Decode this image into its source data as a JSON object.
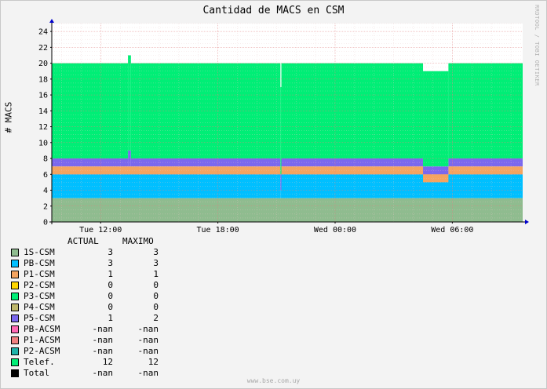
{
  "chart_data": {
    "type": "area",
    "title": "Cantidad de MACS en CSM",
    "ylabel": "# MACS",
    "ylim": [
      0,
      25
    ],
    "y_ticks": [
      0,
      2,
      4,
      6,
      8,
      10,
      12,
      14,
      16,
      18,
      20,
      22,
      24
    ],
    "x_ticks": [
      "Tue 12:00",
      "Tue 18:00",
      "Wed 00:00",
      "Wed 06:00"
    ],
    "x_tick_hours": [
      0,
      6,
      12,
      18
    ],
    "x_range_hours": [
      -2.5,
      21.6
    ],
    "stack": [
      {
        "name": "1S-CSM",
        "color": "#8fbc8f",
        "segments": [
          [
            -2.5,
            21.6,
            3
          ]
        ]
      },
      {
        "name": "PB-CSM",
        "color": "#00bfff",
        "segments": [
          [
            -2.5,
            9.2,
            3
          ],
          [
            9.2,
            9.25,
            1
          ],
          [
            9.25,
            21.6,
            3
          ]
        ]
      },
      {
        "name": "P1-CSM",
        "color": "#f4a460",
        "segments": [
          [
            -2.5,
            9.2,
            1
          ],
          [
            9.2,
            9.25,
            0
          ],
          [
            9.25,
            16.5,
            1
          ],
          [
            16.5,
            17.8,
            1
          ],
          [
            17.8,
            21.6,
            1
          ]
        ]
      },
      {
        "name": "P5-CSM",
        "color": "#7b68ee",
        "segments": [
          [
            -2.5,
            1.4,
            1
          ],
          [
            1.4,
            1.55,
            2
          ],
          [
            1.55,
            9.2,
            1
          ],
          [
            9.2,
            9.25,
            2
          ],
          [
            9.25,
            16.5,
            1
          ],
          [
            16.5,
            17.8,
            1
          ],
          [
            17.8,
            21.6,
            1
          ]
        ]
      },
      {
        "name": "Telef.",
        "color": "#00ee76",
        "segments": [
          [
            -2.5,
            1.4,
            12
          ],
          [
            1.4,
            1.55,
            12
          ],
          [
            1.55,
            9.2,
            12
          ],
          [
            9.2,
            9.25,
            11
          ],
          [
            9.25,
            16.5,
            12
          ],
          [
            16.5,
            17.8,
            12
          ],
          [
            17.8,
            21.6,
            12
          ]
        ]
      }
    ],
    "dips": [
      [
        16.5,
        17.8,
        -1
      ]
    ],
    "grid": true,
    "legend": [
      {
        "name": "1S-CSM",
        "color": "#8fbc8f",
        "actual": "3",
        "maximo": "3"
      },
      {
        "name": "PB-CSM",
        "color": "#00bfff",
        "actual": "3",
        "maximo": "3"
      },
      {
        "name": "P1-CSM",
        "color": "#f4a460",
        "actual": "1",
        "maximo": "1"
      },
      {
        "name": "P2-CSM",
        "color": "#ffd700",
        "actual": "0",
        "maximo": "0"
      },
      {
        "name": "P3-CSM",
        "color": "#00ee76",
        "actual": "0",
        "maximo": "0"
      },
      {
        "name": "P4-CSM",
        "color": "#bdb76b",
        "actual": "0",
        "maximo": "0"
      },
      {
        "name": "P5-CSM",
        "color": "#7b68ee",
        "actual": "1",
        "maximo": "2"
      },
      {
        "name": "PB-ACSM",
        "color": "#ff69b4",
        "actual": "-nan",
        "maximo": "-nan"
      },
      {
        "name": "P1-ACSM",
        "color": "#f08080",
        "actual": "-nan",
        "maximo": "-nan"
      },
      {
        "name": "P2-ACSM",
        "color": "#20b2aa",
        "actual": "-nan",
        "maximo": "-nan"
      },
      {
        "name": "Telef.",
        "color": "#00ee76",
        "actual": "12",
        "maximo": "12"
      },
      {
        "name": "Total",
        "color": "#000000",
        "actual": "-nan",
        "maximo": "-nan"
      }
    ],
    "legend_headers": {
      "actual": "ACTUAL",
      "maximo": "MAXIMO"
    }
  },
  "watermark": "RRDTOOL / TOBI OETIKER",
  "footer": "www.bse.com.uy"
}
